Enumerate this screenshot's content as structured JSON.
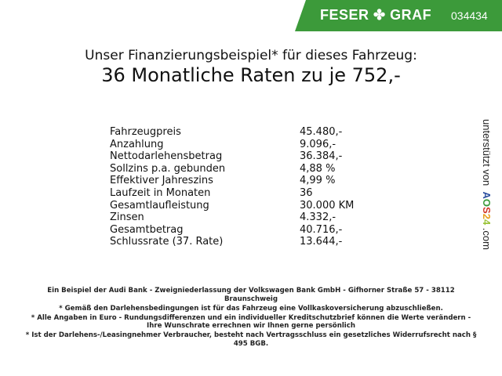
{
  "header": {
    "brand": "FESER",
    "brand2": "GRAF",
    "code": "034434",
    "accent": "#3c9a3a",
    "logo_icon": "clover-icon"
  },
  "title": {
    "line1": "Unser Finanzierungsbeispiel* für dieses Fahrzeug:",
    "line2": "36 Monatliche Raten zu je 752,-"
  },
  "rows": [
    {
      "label": "Fahrzeugpreis",
      "value": "45.480,-"
    },
    {
      "label": "Anzahlung",
      "value": "9.096,-"
    },
    {
      "label": "Nettodarlehensbetrag",
      "value": "36.384,-"
    },
    {
      "label": "Sollzins p.a. gebunden",
      "value": "4,88 %"
    },
    {
      "label": "Effektiver Jahreszins",
      "value": "4,99 %"
    },
    {
      "label": "Laufzeit in Monaten",
      "value": "36"
    },
    {
      "label": "Gesamtlaufleistung",
      "value": "30.000 KM"
    },
    {
      "label": "Zinsen",
      "value": "4.332,-"
    },
    {
      "label": "Gesamtbetrag",
      "value": "40.716,-"
    },
    {
      "label": "Schlussrate (37. Rate)",
      "value": "13.644,-"
    }
  ],
  "side": {
    "text": "unterstützt von",
    "logo": [
      "A",
      "O",
      "S",
      "2",
      "4"
    ],
    "suffix": ".com"
  },
  "footer": [
    "Ein Beispiel der Audi Bank - Zweigniederlassung der Volkswagen Bank GmbH - Gifhorner Straße 57 - 38112 Braunschweig",
    "* Gemäß den Darlehensbedingungen ist für das Fahrzeug eine Vollkaskoversicherung abzuschließen.",
    "* Alle Angaben in Euro - Rundungsdifferenzen und ein individueller Kreditschutzbrief können die Werte verändern - Ihre Wunschrate errechnen wir Ihnen gerne persönlich",
    "* Ist der Darlehens-/Leasingnehmer Verbraucher, besteht nach Vertragsschluss ein gesetzliches Widerrufsrecht nach § 495 BGB."
  ]
}
